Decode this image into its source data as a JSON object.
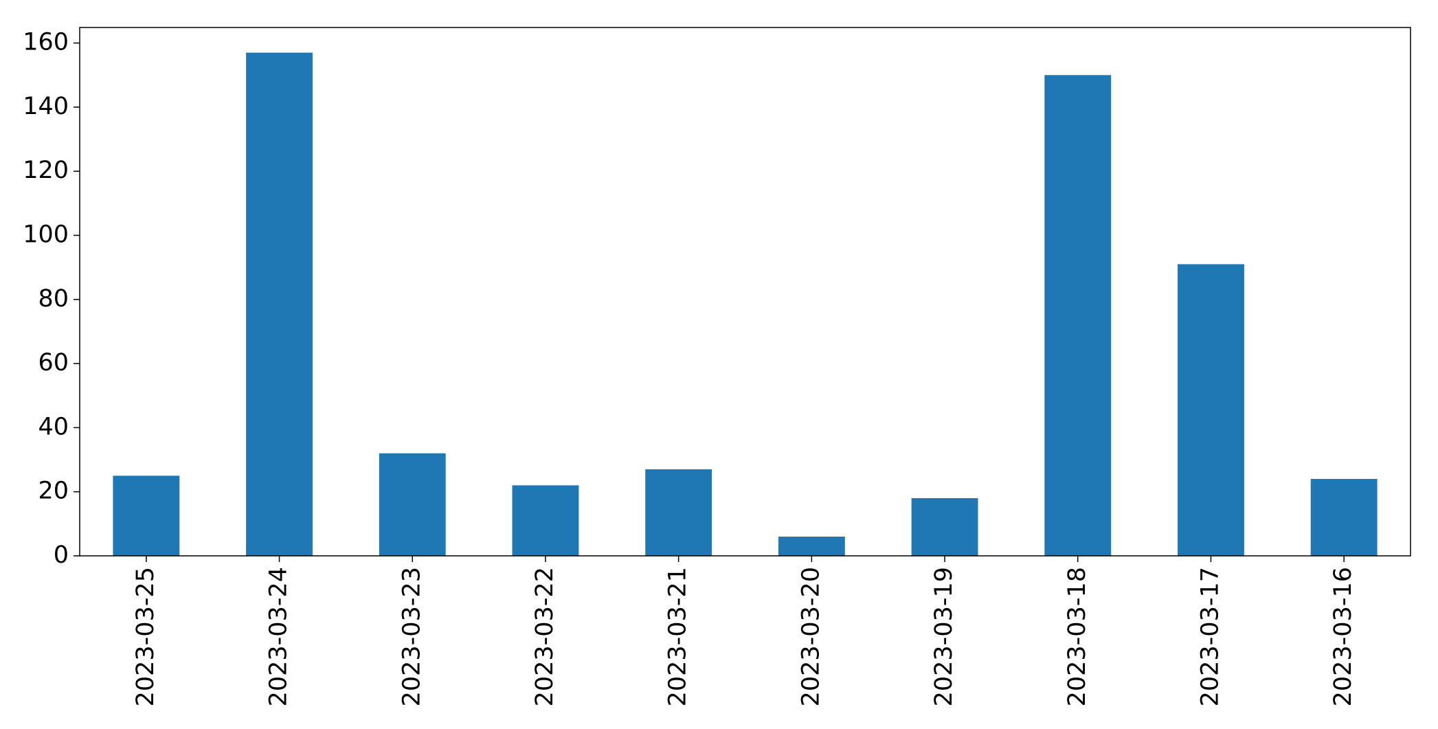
{
  "chart_data": {
    "type": "bar",
    "categories": [
      "2023-03-25",
      "2023-03-24",
      "2023-03-23",
      "2023-03-22",
      "2023-03-21",
      "2023-03-20",
      "2023-03-19",
      "2023-03-18",
      "2023-03-17",
      "2023-03-16"
    ],
    "values": [
      25,
      157,
      32,
      22,
      27,
      6,
      18,
      150,
      91,
      24
    ],
    "color": "#1f77b4",
    "ylim": [
      0,
      164.85
    ],
    "yticks": [
      0,
      20,
      40,
      60,
      80,
      100,
      120,
      140,
      160
    ],
    "grid": false
  }
}
